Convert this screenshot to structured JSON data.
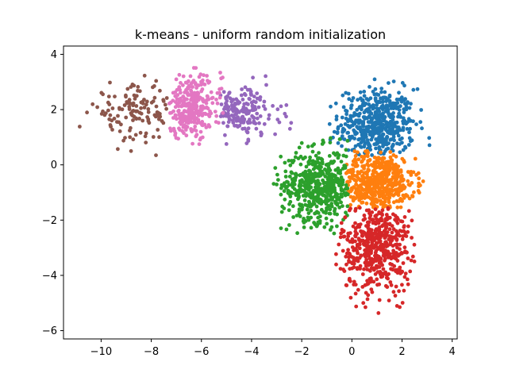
{
  "chart_data": {
    "type": "scatter",
    "title": "k-means - uniform random initialization",
    "xlabel": "",
    "ylabel": "",
    "xlim": [
      -11.5,
      4.2
    ],
    "ylim": [
      -6.3,
      4.3
    ],
    "xticks": [
      -10,
      -8,
      -6,
      -4,
      -2,
      0,
      2,
      4
    ],
    "yticks": [
      -6,
      -4,
      -2,
      0,
      2,
      4
    ],
    "grid": false,
    "legend": "none",
    "series": [
      {
        "color": "#1f77b4",
        "center": [
          1.0,
          1.45
        ],
        "spread": [
          0.75,
          0.65
        ],
        "n": 520,
        "xmin": -0.9,
        "xmax": 3.3,
        "ymin": 0.35,
        "ymax": 3.6
      },
      {
        "color": "#ff7f0e",
        "center": [
          1.0,
          -0.65
        ],
        "spread": [
          0.75,
          0.55
        ],
        "n": 520,
        "xmin": -0.25,
        "xmax": 2.9,
        "ymin": -1.55,
        "ymax": 0.5
      },
      {
        "color": "#2ca02c",
        "center": [
          -1.3,
          -0.75
        ],
        "spread": [
          0.75,
          0.65
        ],
        "n": 520,
        "xmin": -3.5,
        "xmax": -0.15,
        "ymin": -2.7,
        "ymax": 1.0
      },
      {
        "color": "#d62728",
        "center": [
          1.0,
          -2.9
        ],
        "spread": [
          0.7,
          0.85
        ],
        "n": 520,
        "xmin": -0.8,
        "xmax": 2.5,
        "ymin": -5.9,
        "ymax": -1.55
      },
      {
        "color": "#9467bd",
        "center": [
          -4.5,
          1.9
        ],
        "spread": [
          0.8,
          0.45
        ],
        "n": 180,
        "xmin": -5.3,
        "xmax": -1.9,
        "ymin": 0.6,
        "ymax": 3.4
      },
      {
        "color": "#e377c2",
        "center": [
          -6.4,
          2.1
        ],
        "spread": [
          0.6,
          0.55
        ],
        "n": 300,
        "xmin": -7.3,
        "xmax": -5.1,
        "ymin": 0.3,
        "ymax": 3.8
      },
      {
        "color": "#8c564b",
        "center": [
          -8.6,
          1.9
        ],
        "spread": [
          0.9,
          0.5
        ],
        "n": 130,
        "xmin": -11.2,
        "xmax": -7.3,
        "ymin": 0.3,
        "ymax": 3.7
      }
    ]
  }
}
